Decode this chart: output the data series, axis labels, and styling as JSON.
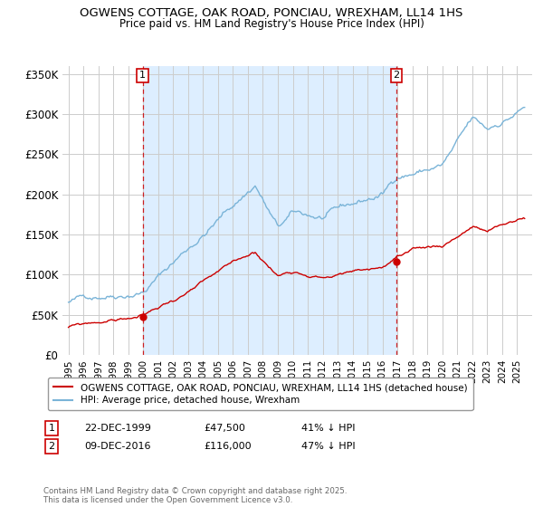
{
  "title": "OGWENS COTTAGE, OAK ROAD, PONCIAU, WREXHAM, LL14 1HS",
  "subtitle": "Price paid vs. HM Land Registry's House Price Index (HPI)",
  "hpi_color": "#7ab4d8",
  "price_color": "#cc0000",
  "dashed_color": "#cc0000",
  "shade_color": "#ddeeff",
  "background": "#ffffff",
  "grid_color": "#cccccc",
  "ylim": [
    0,
    350000
  ],
  "yticks": [
    0,
    50000,
    100000,
    150000,
    200000,
    250000,
    300000,
    350000
  ],
  "ytick_labels": [
    "£0",
    "£50K",
    "£100K",
    "£150K",
    "£200K",
    "£250K",
    "£300K",
    "£350K"
  ],
  "sale1_year": 1999.958,
  "sale1_price": 47500,
  "sale1_date": "22-DEC-1999",
  "sale1_pct": "41% ↓ HPI",
  "sale2_year": 2016.917,
  "sale2_price": 116000,
  "sale2_date": "09-DEC-2016",
  "sale2_pct": "47% ↓ HPI",
  "legend_house": "OGWENS COTTAGE, OAK ROAD, PONCIAU, WREXHAM, LL14 1HS (detached house)",
  "legend_hpi": "HPI: Average price, detached house, Wrexham",
  "footnote": "Contains HM Land Registry data © Crown copyright and database right 2025.\nThis data is licensed under the Open Government Licence v3.0."
}
